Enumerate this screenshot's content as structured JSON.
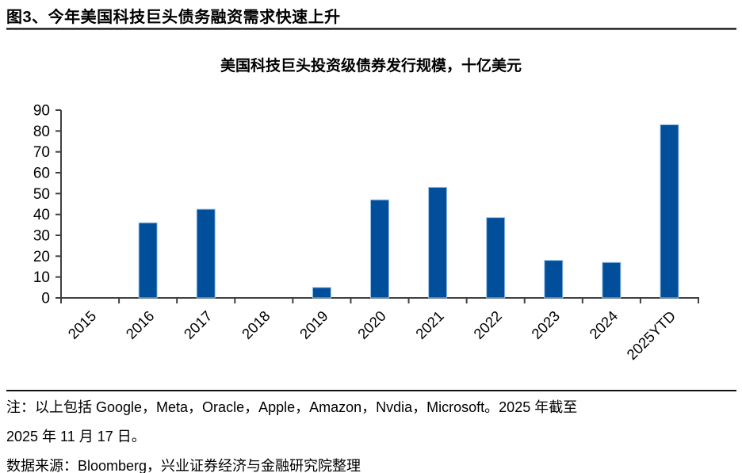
{
  "page": {
    "figure_title": "图3、今年美国科技巨头债务融资需求快速上升"
  },
  "chart_data": {
    "type": "bar",
    "title": "美国科技巨头投资级债券发行规模，十亿美元",
    "categories": [
      "2015",
      "2016",
      "2017",
      "2018",
      "2019",
      "2020",
      "2021",
      "2022",
      "2023",
      "2024",
      "2025YTD"
    ],
    "values": [
      0,
      36,
      42.5,
      0,
      5,
      47,
      53,
      38.5,
      18,
      17,
      83
    ],
    "xlabel": "",
    "ylabel": "",
    "ylim": [
      0,
      90
    ],
    "ytick_step": 10,
    "grid": false,
    "legend": null,
    "x_label_rotation_deg": 45,
    "colors": {
      "bar_fill": "#014F9B",
      "bar_border": "#9CC2E5",
      "axis": "#404040",
      "text": "#000000"
    }
  },
  "footer": {
    "note_line1": "注：以上包括 Google，Meta，Oracle，Apple，Amazon，Nvdia，Microsoft。2025 年截至",
    "note_line2": "2025 年 11 月 17 日。",
    "source": "数据来源：Bloomberg，兴业证券经济与金融研究院整理"
  }
}
